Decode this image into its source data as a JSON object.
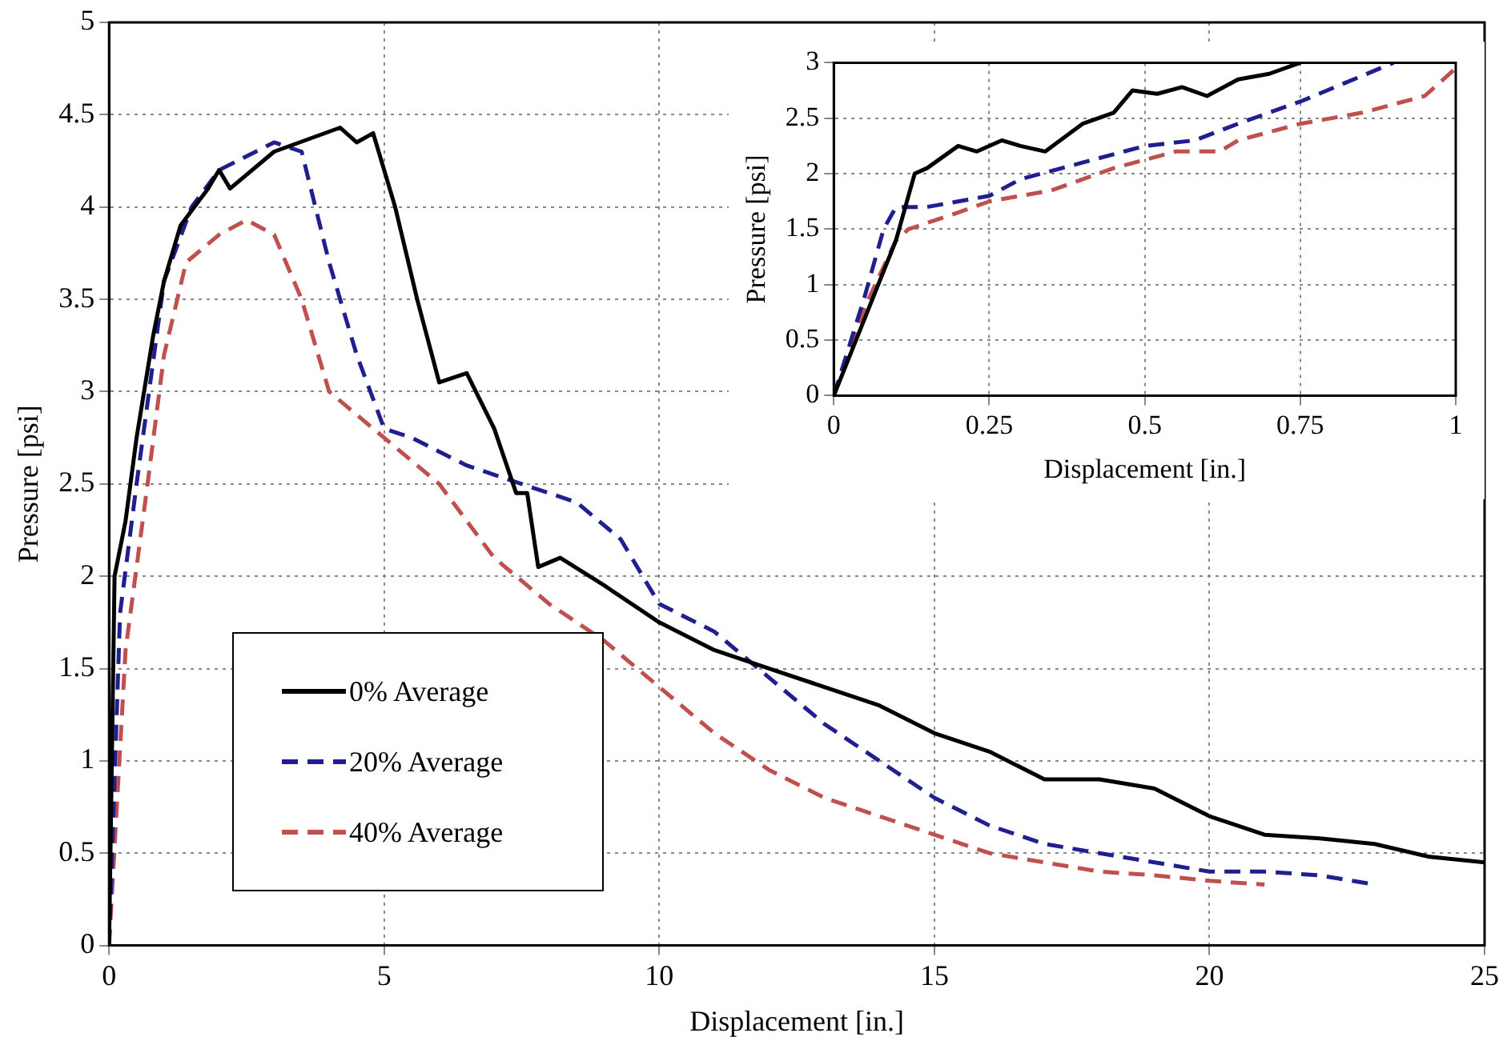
{
  "chart_data": [
    {
      "type": "line",
      "xlabel": "Displacement [in.]",
      "ylabel": "Pressure [psi]",
      "xlim": [
        0,
        25
      ],
      "ylim": [
        0,
        5
      ],
      "xticks": [
        0,
        5,
        10,
        15,
        20,
        25
      ],
      "yticks": [
        0,
        0.5,
        1,
        1.5,
        2,
        2.5,
        3,
        3.5,
        4,
        4.5,
        5
      ],
      "grid": true,
      "legend": "bottom left",
      "marker": "none",
      "series": [
        {
          "name": "0% Average",
          "color": "#000000",
          "line_style": "solid",
          "x": [
            0,
            0.1,
            0.3,
            0.5,
            0.8,
            1.0,
            1.3,
            1.8,
            2.0,
            2.2,
            3.0,
            4.2,
            4.5,
            4.8,
            5.2,
            5.6,
            6.0,
            6.5,
            7.0,
            7.4,
            7.6,
            7.8,
            8.2,
            9,
            10,
            11,
            12,
            13,
            14,
            15,
            16,
            17,
            18,
            19,
            20,
            21,
            22,
            23,
            24,
            25
          ],
          "values": [
            0,
            2.0,
            2.3,
            2.75,
            3.3,
            3.6,
            3.9,
            4.1,
            4.2,
            4.1,
            4.3,
            4.43,
            4.35,
            4.4,
            4.0,
            3.5,
            3.05,
            3.1,
            2.8,
            2.45,
            2.45,
            2.05,
            2.1,
            1.95,
            1.75,
            1.6,
            1.5,
            1.4,
            1.3,
            1.15,
            1.05,
            0.9,
            0.9,
            0.85,
            0.7,
            0.6,
            0.58,
            0.55,
            0.48,
            0.45
          ]
        },
        {
          "name": "20% Average",
          "color": "#1f1f8f",
          "line_style": "dashed",
          "x": [
            0,
            0.2,
            0.5,
            1.0,
            1.5,
            2.0,
            3.0,
            3.5,
            4.0,
            4.5,
            5.0,
            5.5,
            6.5,
            7.5,
            8.5,
            9.3,
            10,
            11,
            12,
            13,
            14,
            15,
            16,
            17,
            18,
            19,
            20,
            21,
            22,
            23
          ],
          "values": [
            0,
            1.8,
            2.5,
            3.6,
            4.0,
            4.2,
            4.35,
            4.3,
            3.7,
            3.2,
            2.8,
            2.75,
            2.6,
            2.5,
            2.4,
            2.2,
            1.85,
            1.7,
            1.45,
            1.2,
            1.0,
            0.8,
            0.65,
            0.55,
            0.5,
            0.45,
            0.4,
            0.4,
            0.38,
            0.33
          ]
        },
        {
          "name": "40% Average",
          "color": "#c0504d",
          "line_style": "dashed",
          "x": [
            0,
            0.3,
            0.7,
            1.0,
            1.4,
            2.0,
            2.5,
            3.0,
            3.5,
            4.0,
            5,
            6,
            7,
            8,
            9,
            10,
            11,
            12,
            13,
            14,
            15,
            16,
            17,
            18,
            19,
            20,
            21
          ],
          "values": [
            0,
            1.6,
            2.5,
            3.2,
            3.7,
            3.85,
            3.93,
            3.85,
            3.5,
            3.0,
            2.75,
            2.5,
            2.1,
            1.85,
            1.65,
            1.4,
            1.15,
            0.95,
            0.8,
            0.7,
            0.6,
            0.5,
            0.45,
            0.4,
            0.38,
            0.35,
            0.33
          ]
        }
      ]
    },
    {
      "type": "line",
      "xlabel": "Displacement [in.]",
      "ylabel": "Pressure [psi]",
      "xlim": [
        0,
        1
      ],
      "ylim": [
        0,
        3
      ],
      "xticks": [
        0,
        0.25,
        0.5,
        0.75,
        1
      ],
      "yticks": [
        0,
        0.5,
        1,
        1.5,
        2,
        2.5,
        3
      ],
      "grid": true,
      "marker": "none",
      "series": [
        {
          "color": "#000000",
          "line_style": "solid",
          "x": [
            0,
            0.05,
            0.1,
            0.13,
            0.15,
            0.2,
            0.23,
            0.27,
            0.3,
            0.34,
            0.4,
            0.45,
            0.48,
            0.52,
            0.56,
            0.6,
            0.65,
            0.7,
            0.75
          ],
          "values": [
            0,
            0.7,
            1.4,
            2.0,
            2.05,
            2.25,
            2.2,
            2.3,
            2.25,
            2.2,
            2.45,
            2.55,
            2.75,
            2.72,
            2.78,
            2.7,
            2.85,
            2.9,
            3.0
          ]
        },
        {
          "color": "#1f1f8f",
          "line_style": "dashed",
          "x": [
            0,
            0.05,
            0.08,
            0.1,
            0.15,
            0.25,
            0.3,
            0.4,
            0.5,
            0.58,
            0.65,
            0.75,
            0.9
          ],
          "values": [
            0,
            0.9,
            1.5,
            1.7,
            1.7,
            1.8,
            1.95,
            2.1,
            2.25,
            2.3,
            2.45,
            2.65,
            3.0
          ]
        },
        {
          "color": "#c0504d",
          "line_style": "dashed",
          "x": [
            0,
            0.05,
            0.1,
            0.12,
            0.2,
            0.25,
            0.35,
            0.45,
            0.55,
            0.62,
            0.65,
            0.75,
            0.85,
            0.95,
            1.0
          ],
          "values": [
            0,
            0.8,
            1.4,
            1.5,
            1.65,
            1.75,
            1.85,
            2.05,
            2.2,
            2.2,
            2.3,
            2.45,
            2.55,
            2.7,
            2.95
          ]
        }
      ]
    }
  ]
}
